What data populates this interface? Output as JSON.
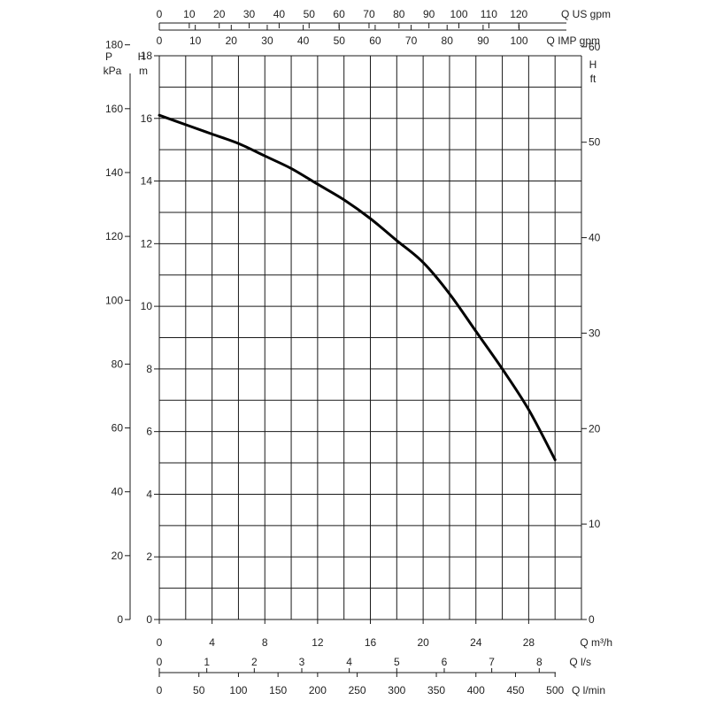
{
  "chart_data": {
    "type": "line",
    "series": [
      {
        "x": [
          0,
          2,
          4,
          6,
          8,
          10,
          12,
          14,
          16,
          18,
          20,
          22,
          24,
          26,
          28,
          30
        ],
        "y": [
          16.1,
          15.8,
          15.5,
          15.2,
          14.8,
          14.4,
          13.9,
          13.4,
          12.8,
          12.1,
          11.4,
          10.4,
          9.2,
          8.0,
          6.7,
          5.1
        ]
      }
    ],
    "xlim": [
      0,
      32
    ],
    "ylim": [
      0,
      18
    ],
    "grid": true,
    "grid_x_step": 2,
    "grid_y_step": 1,
    "axes": {
      "left_p": {
        "label": [
          "P",
          "kPa"
        ],
        "ticks": [
          {
            "v": 0,
            "t": "0"
          },
          {
            "v": 20,
            "t": "20"
          },
          {
            "v": 40,
            "t": "40"
          },
          {
            "v": 60,
            "t": "60"
          },
          {
            "v": 80,
            "t": "80"
          },
          {
            "v": 100,
            "t": "100"
          },
          {
            "v": 120,
            "t": "120"
          },
          {
            "v": 140,
            "t": "140"
          },
          {
            "v": 160,
            "t": "160"
          },
          {
            "v": 180,
            "t": "180"
          }
        ],
        "factor": 9.81
      },
      "left_h": {
        "label": [
          "H",
          "m"
        ],
        "ticks": [
          {
            "v": 0,
            "t": "0"
          },
          {
            "v": 2,
            "t": "2"
          },
          {
            "v": 4,
            "t": "4"
          },
          {
            "v": 6,
            "t": "6"
          },
          {
            "v": 8,
            "t": "8"
          },
          {
            "v": 10,
            "t": "10"
          },
          {
            "v": 12,
            "t": "12"
          },
          {
            "v": 14,
            "t": "14"
          },
          {
            "v": 16,
            "t": "16"
          },
          {
            "v": 18,
            "t": "18"
          }
        ],
        "factor": 1
      },
      "right_h": {
        "label": [
          "H",
          "ft"
        ],
        "ticks": [
          {
            "v": 0,
            "t": "0"
          },
          {
            "v": 10,
            "t": "10"
          },
          {
            "v": 20,
            "t": "20"
          },
          {
            "v": 30,
            "t": "30"
          },
          {
            "v": 40,
            "t": "40"
          },
          {
            "v": 50,
            "t": "50"
          },
          {
            "v": 60,
            "t": "60"
          }
        ],
        "factor": 3.281
      },
      "top_us": {
        "label": "Q US gpm",
        "ticks": [
          {
            "v": 0,
            "t": "0"
          },
          {
            "v": 10,
            "t": "10"
          },
          {
            "v": 20,
            "t": "20"
          },
          {
            "v": 30,
            "t": "30"
          },
          {
            "v": 40,
            "t": "40"
          },
          {
            "v": 50,
            "t": "50"
          },
          {
            "v": 60,
            "t": "60"
          },
          {
            "v": 70,
            "t": "70"
          },
          {
            "v": 80,
            "t": "80"
          },
          {
            "v": 90,
            "t": "90"
          },
          {
            "v": 100,
            "t": "100"
          },
          {
            "v": 110,
            "t": "110"
          },
          {
            "v": 120,
            "t": "120"
          }
        ],
        "factor": 4.403
      },
      "top_imp": {
        "label": "Q IMP gpm",
        "ticks": [
          {
            "v": 0,
            "t": "0"
          },
          {
            "v": 10,
            "t": "10"
          },
          {
            "v": 20,
            "t": "20"
          },
          {
            "v": 30,
            "t": "30"
          },
          {
            "v": 40,
            "t": "40"
          },
          {
            "v": 50,
            "t": "50"
          },
          {
            "v": 60,
            "t": "60"
          },
          {
            "v": 70,
            "t": "70"
          },
          {
            "v": 80,
            "t": "80"
          },
          {
            "v": 90,
            "t": "90"
          },
          {
            "v": 100,
            "t": "100"
          }
        ],
        "factor": 3.666
      },
      "bottom_m3h": {
        "label": "Q m³/h",
        "ticks": [
          {
            "v": 0,
            "t": "0"
          },
          {
            "v": 4,
            "t": "4"
          },
          {
            "v": 8,
            "t": "8"
          },
          {
            "v": 12,
            "t": "12"
          },
          {
            "v": 16,
            "t": "16"
          },
          {
            "v": 20,
            "t": "20"
          },
          {
            "v": 24,
            "t": "24"
          },
          {
            "v": 28,
            "t": "28"
          }
        ],
        "factor": 1
      },
      "bottom_ls": {
        "label": "Q l/s",
        "ticks": [
          {
            "v": 0,
            "t": "0"
          },
          {
            "v": 1,
            "t": "1"
          },
          {
            "v": 2,
            "t": "2"
          },
          {
            "v": 3,
            "t": "3"
          },
          {
            "v": 4,
            "t": "4"
          },
          {
            "v": 5,
            "t": "5"
          },
          {
            "v": 6,
            "t": "6"
          },
          {
            "v": 7,
            "t": "7"
          },
          {
            "v": 8,
            "t": "8"
          }
        ],
        "factor": 0.2778
      },
      "bottom_lmin": {
        "label": "Q l/min",
        "ticks": [
          {
            "v": 0,
            "t": "0"
          },
          {
            "v": 50,
            "t": "50"
          },
          {
            "v": 100,
            "t": "100"
          },
          {
            "v": 150,
            "t": "150"
          },
          {
            "v": 200,
            "t": "200"
          },
          {
            "v": 250,
            "t": "250"
          },
          {
            "v": 300,
            "t": "300"
          },
          {
            "v": 350,
            "t": "350"
          },
          {
            "v": 400,
            "t": "400"
          },
          {
            "v": 450,
            "t": "450"
          },
          {
            "v": 500,
            "t": "500"
          }
        ],
        "factor": 16.667
      }
    }
  }
}
